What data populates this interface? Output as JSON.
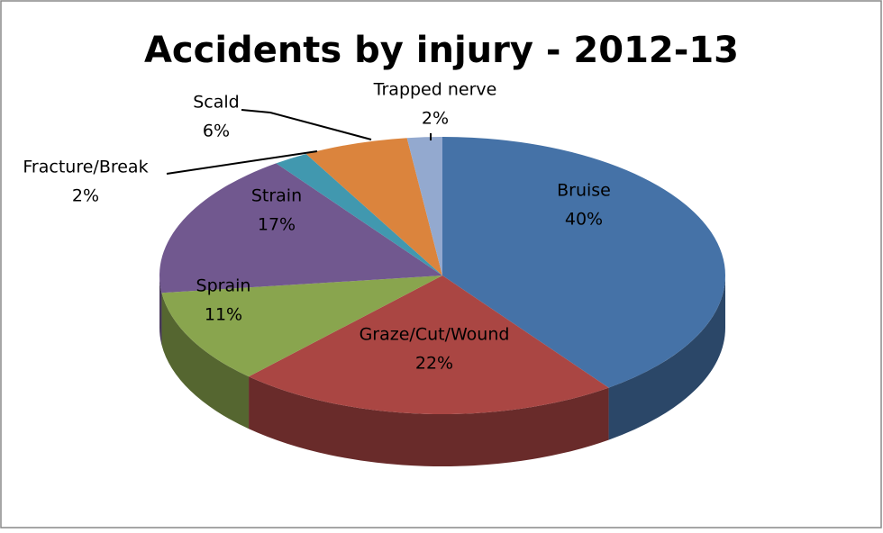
{
  "chart_data": {
    "type": "pie",
    "title": "Accidents by injury - 2012-13",
    "categories": [
      "Bruise",
      "Graze/Cut/Wound",
      "Sprain",
      "Strain",
      "Fracture/Break",
      "Scald",
      "Trapped nerve"
    ],
    "values": [
      40,
      22,
      11,
      17,
      2,
      6,
      2
    ],
    "value_labels": [
      "40%",
      "22%",
      "11%",
      "17%",
      "2%",
      "6%",
      "2%"
    ],
    "colors": [
      "#4572a7",
      "#aa4643",
      "#89a54e",
      "#71588f",
      "#4198af",
      "#db843d",
      "#93a9cf"
    ]
  }
}
